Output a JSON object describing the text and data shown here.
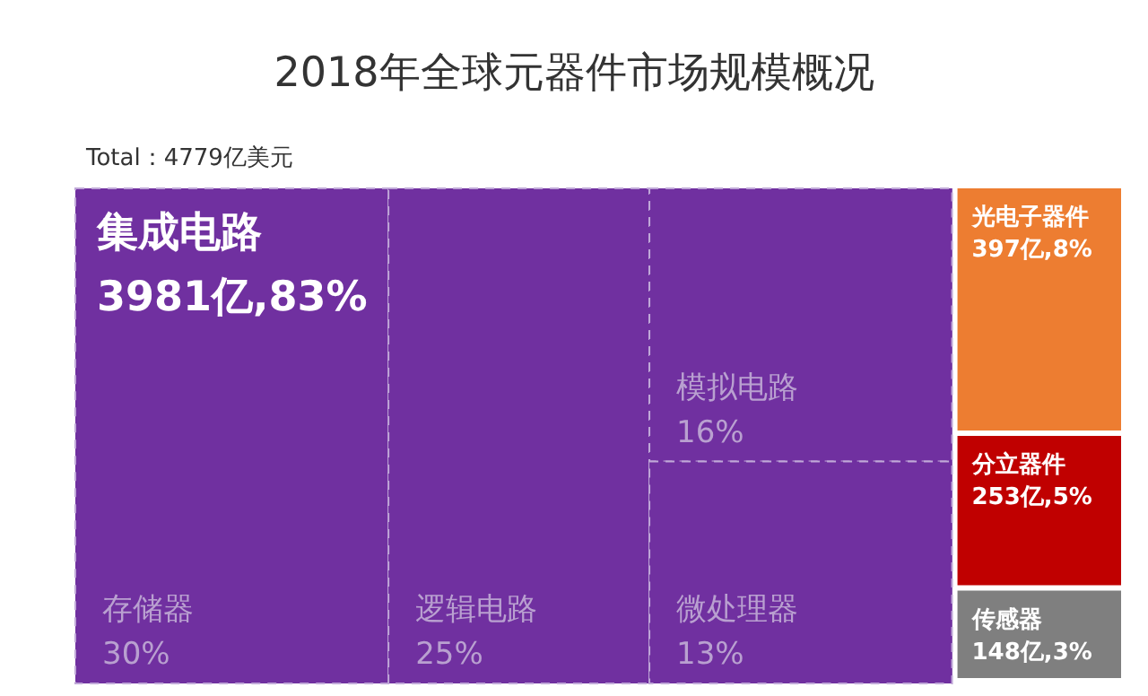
{
  "chart_data": {
    "type": "other",
    "title": "2018年全球元器件市场规模概况",
    "annotations": [
      "Total：4779亿美元"
    ],
    "categories": [
      "集成电路",
      "光电子器件",
      "分立器件",
      "传感器",
      "存储器",
      "逻辑电路",
      "模拟电路",
      "微处理器"
    ],
    "values": [
      83,
      8,
      5,
      3,
      30,
      25,
      16,
      13
    ],
    "value_labels": [
      "3981亿,83%",
      "397亿,8%",
      "253亿,5%",
      "148亿,3%",
      "30%",
      "25%",
      "16%",
      "13%"
    ],
    "colors": [
      "#7030a0",
      "#ed7d31",
      "#c00000",
      "#7f7f7f",
      "#7030a0",
      "#7030a0",
      "#7030a0",
      "#7030a0"
    ]
  }
}
